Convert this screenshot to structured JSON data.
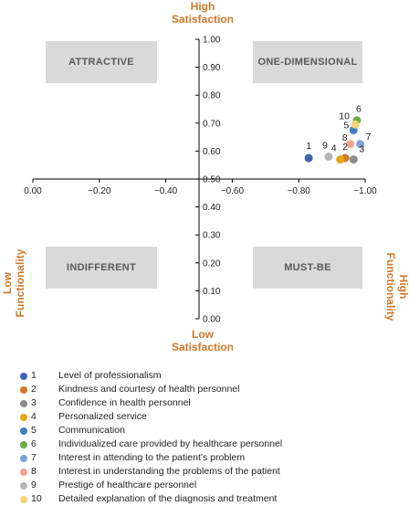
{
  "axes": {
    "top": "High\nSatisfaction",
    "bottom": "Low\nSatisfaction",
    "left": "Low\nFunctionality",
    "right": "High\nFunctionality"
  },
  "quadrants": {
    "top_left": "ATTRACTIVE",
    "top_right": "ONE-DIMENSIONAL",
    "bottom_left": "INDIFFERENT",
    "bottom_right": "MUST-BE"
  },
  "chart_data": {
    "type": "scatter",
    "xlim": [
      0.0,
      -1.0
    ],
    "ylim": [
      0.0,
      1.0
    ],
    "x_ticks": [
      "0.00",
      "−0.20",
      "−0.40",
      "−0.60",
      "−0.80",
      "−1.00"
    ],
    "x_tick_values": [
      0.0,
      -0.2,
      -0.4,
      -0.6,
      -0.8,
      -1.0
    ],
    "y_ticks": [
      "0.00",
      "0.10",
      "0.20",
      "0.30",
      "0.40",
      "0.50",
      "0.60",
      "0.70",
      "0.80",
      "0.90",
      "1.00"
    ],
    "y_tick_values": [
      0.0,
      0.1,
      0.2,
      0.3,
      0.4,
      0.5,
      0.6,
      0.7,
      0.8,
      0.9,
      1.0
    ],
    "x_cross": -0.5,
    "y_cross": 0.5,
    "points": [
      {
        "id": "1",
        "label": "Level of professionalism",
        "x": -0.83,
        "y": 0.575,
        "color": "#3a66b0"
      },
      {
        "id": "2",
        "label": "Kindness and courtesy of health personnel",
        "x": -0.94,
        "y": 0.575,
        "color": "#d0782a"
      },
      {
        "id": "3",
        "label": "Confidence in health personnel",
        "x": -0.965,
        "y": 0.57,
        "color": "#8c8c8c"
      },
      {
        "id": "4",
        "label": "Personalized service",
        "x": -0.925,
        "y": 0.57,
        "color": "#e6a817"
      },
      {
        "id": "5",
        "label": "Communication",
        "x": -0.965,
        "y": 0.675,
        "color": "#3f7fc4"
      },
      {
        "id": "6",
        "label": "Individualized care provided by healthcare personnel",
        "x": -0.975,
        "y": 0.71,
        "color": "#70ad47"
      },
      {
        "id": "7",
        "label": "Interest in attending to the patient’s problem",
        "x": -0.985,
        "y": 0.625,
        "color": "#7fa3d6"
      },
      {
        "id": "8",
        "label": "Interest in understanding the problems of the patient",
        "x": -0.955,
        "y": 0.625,
        "color": "#f0a58a"
      },
      {
        "id": "9",
        "label": "Prestige of healthcare personnel",
        "x": -0.89,
        "y": 0.58,
        "color": "#b5b5b5"
      },
      {
        "id": "10",
        "label": "Detailed explanation of the diagnosis and treatment",
        "x": -0.97,
        "y": 0.695,
        "color": "#f5d27a"
      }
    ]
  }
}
